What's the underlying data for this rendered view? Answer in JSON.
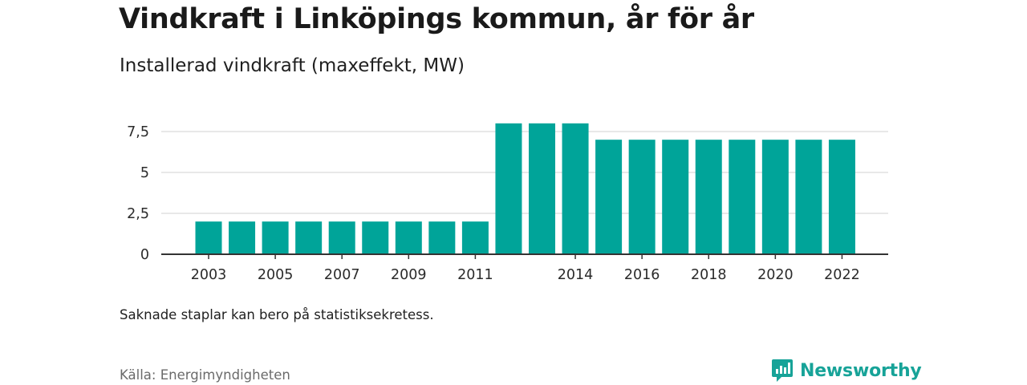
{
  "title": "Vindkraft i Linköpings kommun, år för år",
  "subtitle": "Installerad vindkraft (maxeffekt, MW)",
  "note": "Saknade staplar kan bero på statistiksekretess.",
  "source": "Källa: Energimyndigheten",
  "brand": {
    "name": "Newsworthy",
    "icon": "newsworthy-logo-icon",
    "color": "#17a398"
  },
  "chart_data": {
    "type": "bar",
    "bar_color": "#00a499",
    "grid": true,
    "ylim": [
      0,
      7.5
    ],
    "y_ticks": [
      0,
      2.5,
      5,
      7.5
    ],
    "y_tick_labels": [
      "0",
      "2,5",
      "5",
      "7,5"
    ],
    "categories": [
      2003,
      2004,
      2005,
      2006,
      2007,
      2008,
      2009,
      2010,
      2011,
      2012,
      2013,
      2014,
      2015,
      2016,
      2017,
      2018,
      2019,
      2020,
      2021,
      2022
    ],
    "x_tick_labels": [
      "2003",
      "2005",
      "2007",
      "2009",
      "2011",
      "2014",
      "2016",
      "2018",
      "2020",
      "2022"
    ],
    "values": [
      2,
      2,
      2,
      2,
      2,
      2,
      2,
      2,
      2,
      8,
      8,
      8,
      7,
      7,
      7,
      7,
      7,
      7,
      7,
      7
    ],
    "xlabel": "",
    "ylabel": ""
  }
}
